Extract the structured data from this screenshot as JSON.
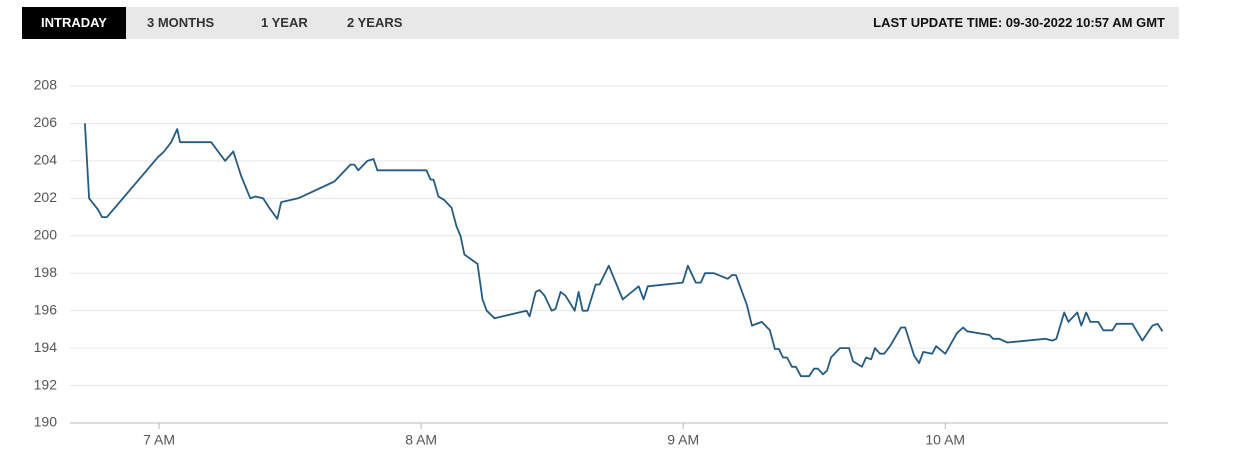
{
  "tabs": [
    {
      "label": "INTRADAY",
      "active": true
    },
    {
      "label": "3 MONTHS",
      "active": false
    },
    {
      "label": "1 YEAR",
      "active": false
    },
    {
      "label": "2 YEARS",
      "active": false
    }
  ],
  "last_update": "LAST UPDATE TIME: 09-30-2022 10:57 AM GMT",
  "chart_data": {
    "type": "line",
    "color": "#245b82",
    "grid": true,
    "x": [
      6.717,
      6.733,
      6.767,
      6.782,
      6.801,
      6.996,
      7.019,
      7.046,
      7.069,
      7.08,
      7.199,
      7.252,
      7.283,
      7.313,
      7.348,
      7.367,
      7.397,
      7.42,
      7.451,
      7.466,
      7.531,
      7.669,
      7.73,
      7.745,
      7.76,
      7.795,
      7.818,
      7.833,
      8.02,
      8.036,
      8.047,
      8.066,
      8.089,
      8.116,
      8.135,
      8.15,
      8.165,
      8.215,
      8.234,
      8.25,
      8.28,
      8.402,
      8.414,
      8.437,
      8.452,
      8.471,
      8.498,
      8.513,
      8.532,
      8.551,
      8.586,
      8.601,
      8.616,
      8.635,
      8.666,
      8.681,
      8.716,
      8.769,
      8.83,
      8.849,
      8.865,
      8.998,
      9.018,
      9.048,
      9.067,
      9.083,
      9.117,
      9.17,
      9.186,
      9.201,
      9.243,
      9.262,
      9.3,
      9.331,
      9.35,
      9.365,
      9.381,
      9.396,
      9.415,
      9.43,
      9.449,
      9.48,
      9.499,
      9.514,
      9.533,
      9.549,
      9.564,
      9.598,
      9.633,
      9.648,
      9.682,
      9.698,
      9.717,
      9.732,
      9.751,
      9.767,
      9.789,
      9.831,
      9.847,
      9.881,
      9.9,
      9.916,
      9.95,
      9.965,
      10.0,
      10.045,
      10.068,
      10.084,
      10.168,
      10.183,
      10.206,
      10.237,
      10.382,
      10.409,
      10.424,
      10.454,
      10.47,
      10.504,
      10.519,
      10.538,
      10.554,
      10.584,
      10.603,
      10.638,
      10.653,
      10.714,
      10.752,
      10.791,
      10.81,
      10.829
    ],
    "values": [
      206.0,
      202.0,
      201.4,
      201.0,
      201.0,
      204.2,
      204.5,
      205.0,
      205.7,
      205.0,
      205.0,
      204.0,
      204.5,
      203.2,
      202.0,
      202.1,
      202.0,
      201.5,
      200.9,
      201.8,
      202.0,
      202.9,
      203.8,
      203.8,
      203.5,
      204.0,
      204.1,
      203.5,
      203.5,
      203.0,
      203.0,
      202.1,
      201.9,
      201.5,
      200.5,
      200.0,
      199.0,
      198.5,
      196.6,
      196.0,
      195.6,
      196.0,
      195.7,
      197.0,
      197.1,
      196.8,
      196.0,
      196.1,
      197.0,
      196.8,
      196.0,
      197.0,
      196.0,
      196.0,
      197.4,
      197.4,
      198.4,
      196.6,
      197.3,
      196.6,
      197.3,
      197.5,
      198.4,
      197.5,
      197.5,
      198.0,
      198.0,
      197.7,
      197.9,
      197.9,
      196.3,
      195.2,
      195.4,
      194.95,
      193.95,
      193.95,
      193.5,
      193.5,
      193.0,
      193.0,
      192.5,
      192.5,
      192.9,
      192.9,
      192.6,
      192.8,
      193.5,
      194.0,
      194.0,
      193.3,
      193.0,
      193.5,
      193.4,
      194.0,
      193.7,
      193.7,
      194.1,
      195.1,
      195.1,
      193.6,
      193.2,
      193.8,
      193.7,
      194.1,
      193.7,
      194.8,
      195.1,
      194.9,
      194.7,
      194.5,
      194.5,
      194.3,
      194.5,
      194.4,
      194.5,
      195.9,
      195.4,
      195.9,
      195.2,
      195.9,
      195.4,
      195.4,
      194.95,
      194.95,
      195.3,
      195.3,
      194.4,
      195.2,
      195.3,
      194.9
    ],
    "xlim": [
      6.66,
      10.85
    ],
    "xticks": [
      {
        "value": 7,
        "label": "7 AM"
      },
      {
        "value": 8,
        "label": "8 AM"
      },
      {
        "value": 9,
        "label": "9 AM"
      },
      {
        "value": 10,
        "label": "10 AM"
      }
    ],
    "ylim": [
      190,
      208
    ],
    "yticks": [
      190,
      192,
      194,
      196,
      198,
      200,
      202,
      204,
      206,
      208
    ]
  }
}
